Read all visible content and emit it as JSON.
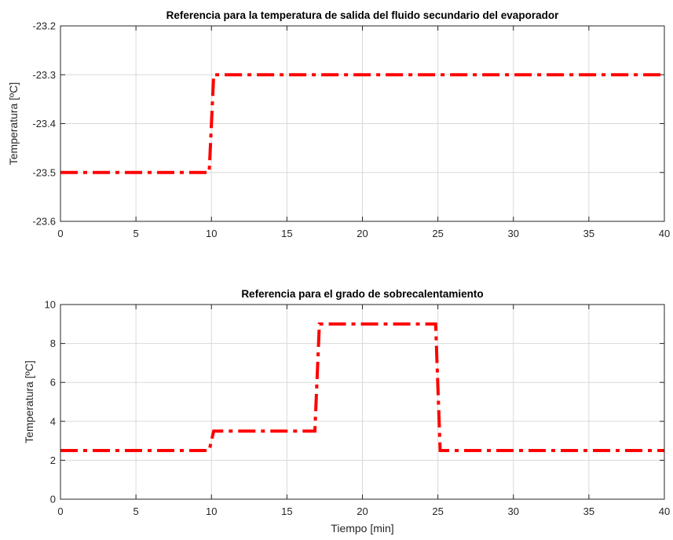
{
  "chart_data": [
    {
      "type": "line",
      "title": "Referencia para la temperatura de salida del fluido secundario del evaporador",
      "xlabel": "",
      "ylabel": "Temperatura [ºC]",
      "xlim": [
        0,
        40
      ],
      "ylim": [
        -23.6,
        -23.2
      ],
      "xticks": [
        0,
        5,
        10,
        15,
        20,
        25,
        30,
        35,
        40
      ],
      "yticks": [
        -23.6,
        -23.5,
        -23.4,
        -23.3,
        -23.2
      ],
      "xtick_labels": [
        "0",
        "5",
        "10",
        "15",
        "20",
        "25",
        "30",
        "35",
        "40"
      ],
      "ytick_labels": [
        "-23.6",
        "-23.5",
        "-23.4",
        "-23.3",
        "-23.2"
      ],
      "grid": true,
      "series": [
        {
          "color": "#ff0000",
          "style": "dash-dot",
          "x": [
            0,
            9.85,
            10.15,
            40
          ],
          "y": [
            -23.5,
            -23.5,
            -23.3,
            -23.3
          ]
        }
      ]
    },
    {
      "type": "line",
      "title": "Referencia para el grado de sobrecalentamiento",
      "xlabel": "Tiempo [min]",
      "ylabel": "Temperatura [ºC]",
      "xlim": [
        0,
        40
      ],
      "ylim": [
        0,
        10
      ],
      "xticks": [
        0,
        5,
        10,
        15,
        20,
        25,
        30,
        35,
        40
      ],
      "yticks": [
        0,
        2,
        4,
        6,
        8,
        10
      ],
      "xtick_labels": [
        "0",
        "5",
        "10",
        "15",
        "20",
        "25",
        "30",
        "35",
        "40"
      ],
      "ytick_labels": [
        "0",
        "2",
        "4",
        "6",
        "8",
        "10"
      ],
      "grid": true,
      "series": [
        {
          "color": "#ff0000",
          "style": "dash-dot",
          "x": [
            0,
            9.85,
            10.15,
            16.85,
            17.15,
            24.85,
            25.15,
            40
          ],
          "y": [
            2.5,
            2.5,
            3.5,
            3.5,
            9,
            9,
            2.5,
            2.5
          ]
        }
      ]
    }
  ]
}
